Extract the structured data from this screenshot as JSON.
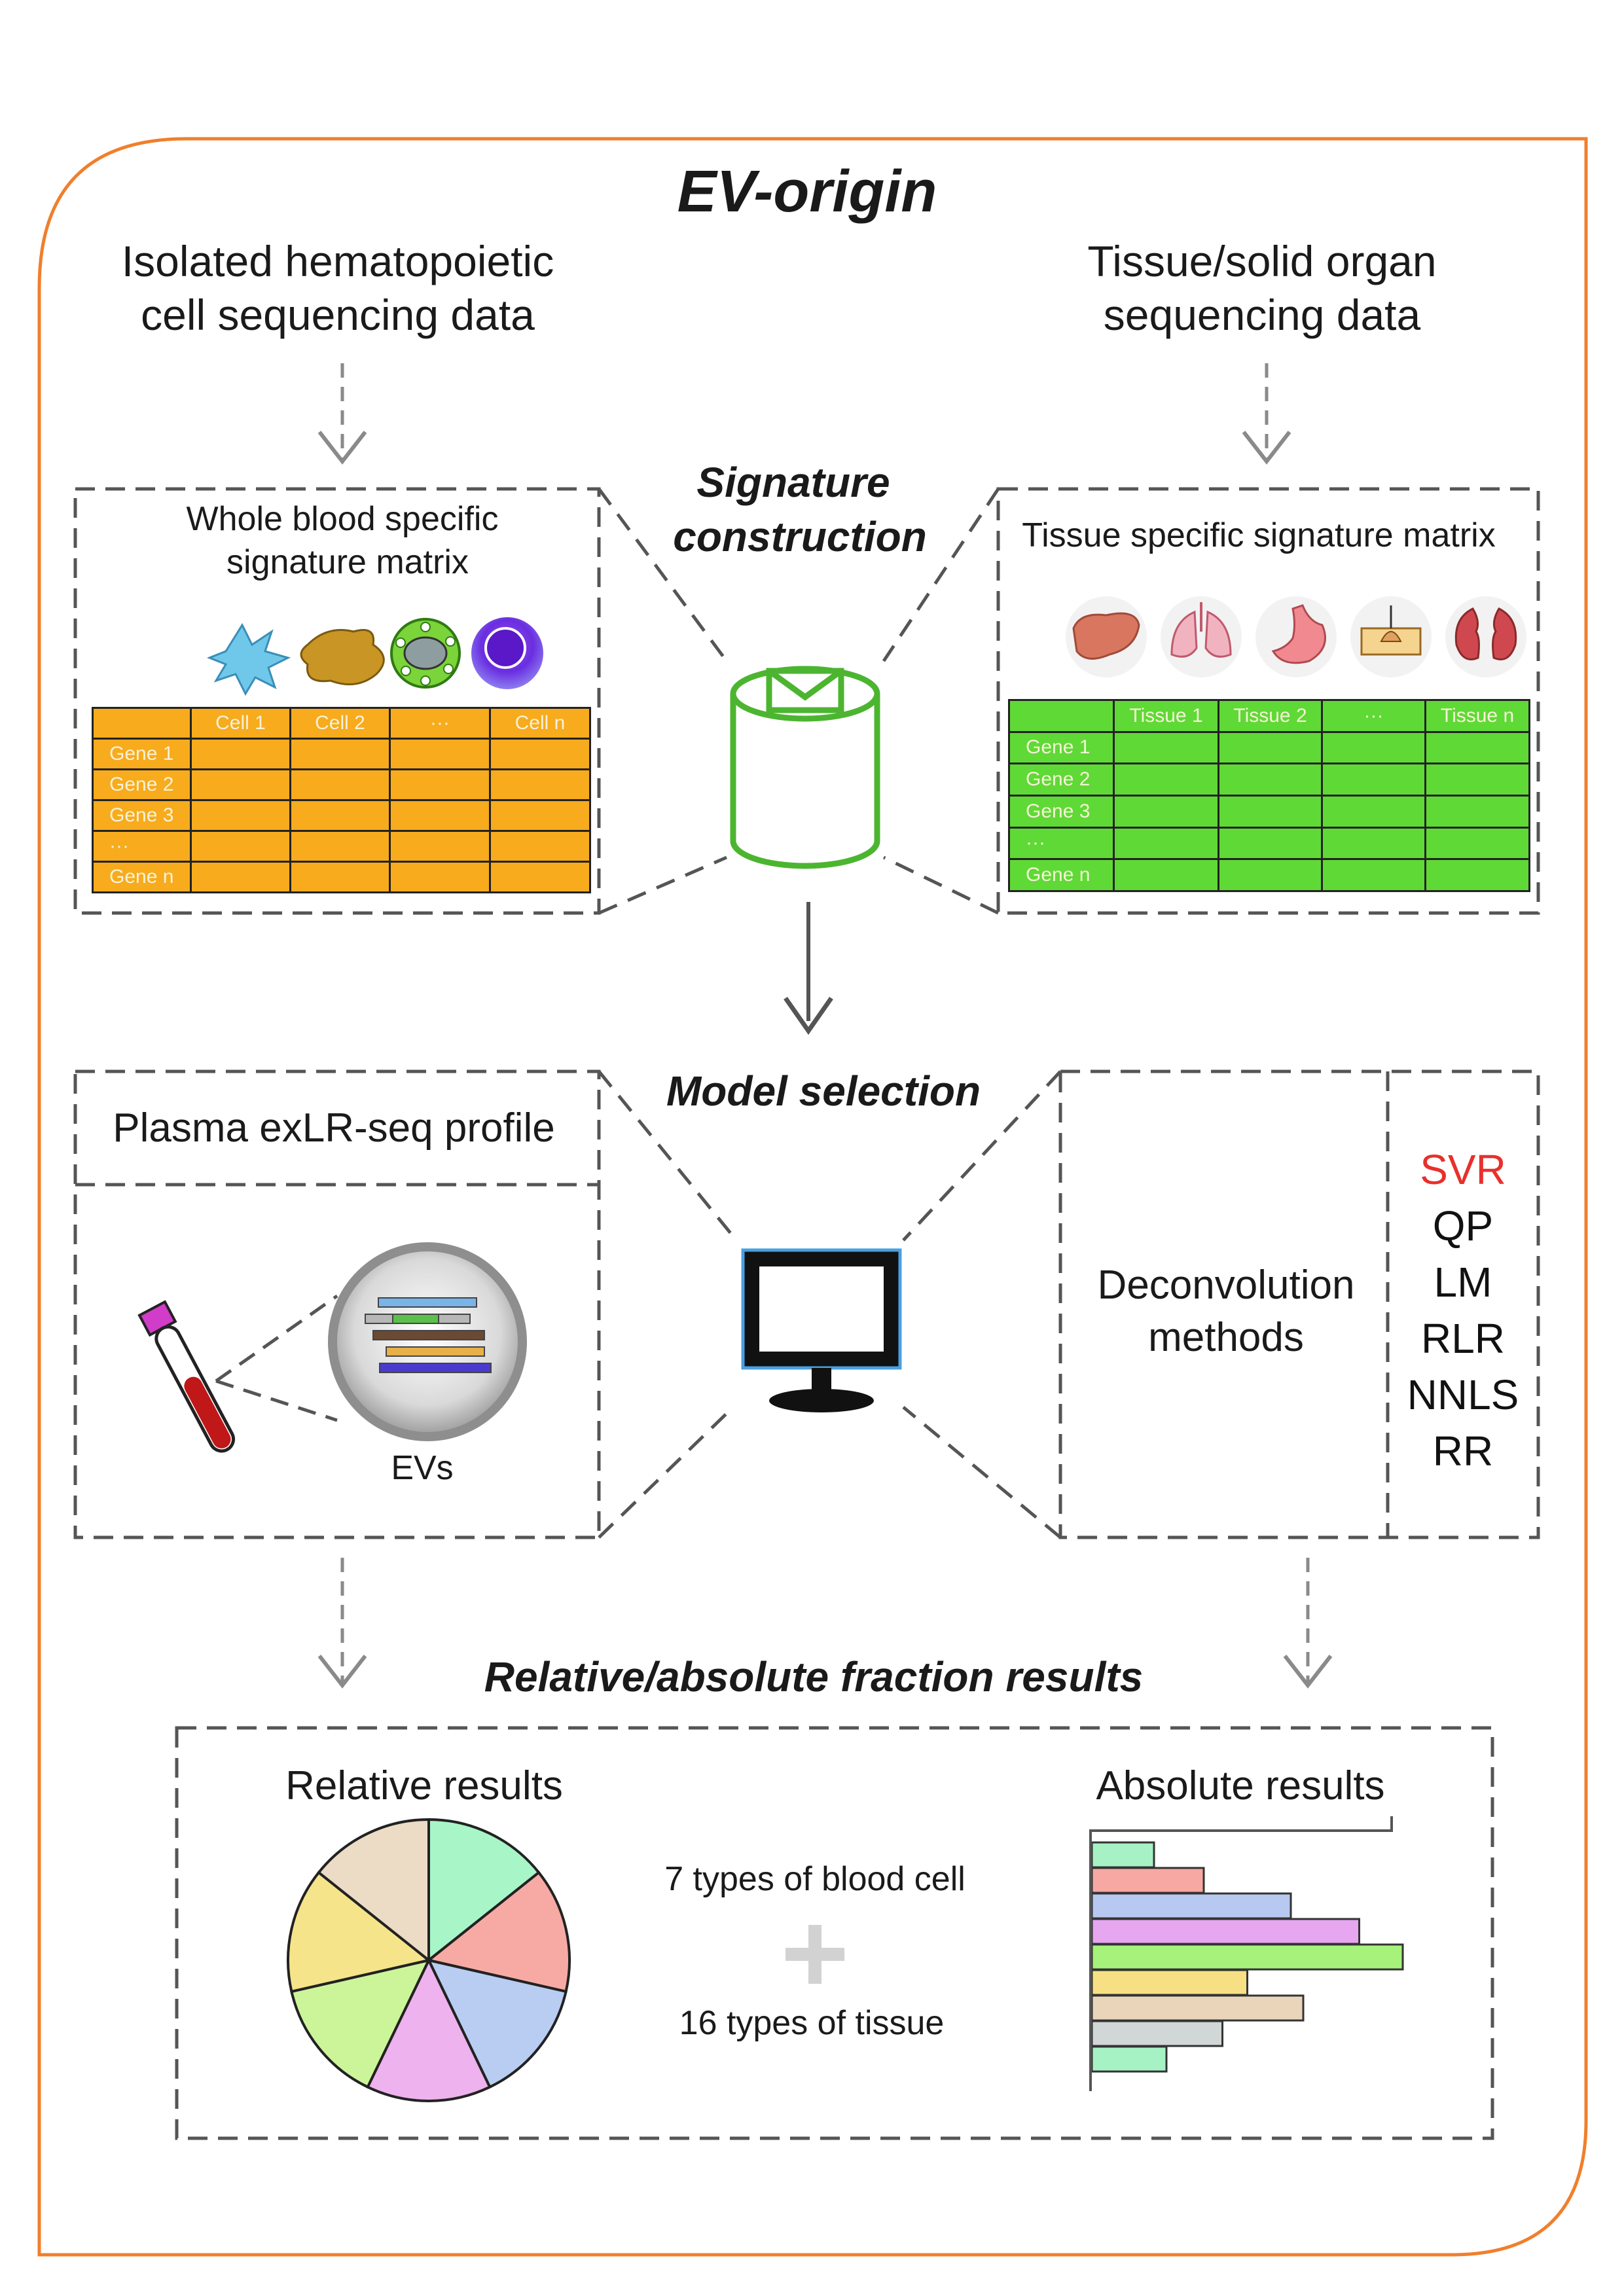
{
  "title": "EV-origin",
  "top_left_source": [
    "Isolated hematopoietic",
    "cell sequencing data"
  ],
  "top_right_source": [
    "Tissue/solid organ",
    "sequencing data"
  ],
  "signature_construction": [
    "Signature",
    "construction"
  ],
  "blood_matrix": {
    "title": [
      "Whole blood specific",
      "signature matrix"
    ],
    "columns": [
      "",
      "Cell 1",
      "Cell 2",
      "···",
      "Cell n"
    ],
    "rows": [
      "Gene 1",
      "Gene 2",
      "Gene 3",
      "···",
      "Gene n"
    ],
    "color": "#f7ab1d"
  },
  "tissue_matrix": {
    "title": "Tissue specific signature matrix",
    "columns": [
      "",
      "Tissue 1",
      "Tissue 2",
      "···",
      "Tissue n"
    ],
    "rows": [
      "Gene 1",
      "Gene 2",
      "Gene 3",
      "···",
      "Gene n"
    ],
    "color": "#5fd936"
  },
  "model_selection": "Model selection",
  "plasma_profile": "Plasma exLR-seq profile",
  "evs_label": "EVs",
  "deconvolution": [
    "Deconvolution",
    "methods"
  ],
  "methods": [
    {
      "name": "SVR",
      "color": "#e8302c"
    },
    {
      "name": "QP",
      "color": "#111111"
    },
    {
      "name": "LM",
      "color": "#111111"
    },
    {
      "name": "RLR",
      "color": "#111111"
    },
    {
      "name": "NNLS",
      "color": "#111111"
    },
    {
      "name": "RR",
      "color": "#111111"
    }
  ],
  "results_heading": "Relative/absolute fraction results",
  "relative_results": "Relative results",
  "absolute_results": "Absolute results",
  "blood_cell_types": "7 types of blood cell",
  "tissue_types": "16 types of tissue",
  "pie_colors": [
    "#a8f5c8",
    "#f7aaa4",
    "#b9cdf2",
    "#eeb2ee",
    "#ccf59a",
    "#f5e48a",
    "#ecdcc6"
  ],
  "bar_values": [
    0.2,
    0.36,
    0.64,
    0.86,
    1.0,
    0.5,
    0.68,
    0.42,
    0.24
  ],
  "bar_colors": [
    "#a6f2c4",
    "#f7a8a2",
    "#b7c9f0",
    "#e6a6f0",
    "#a6f27a",
    "#f7e083",
    "#ead5bb",
    "#d0d7d6",
    "#a6f2c4"
  ],
  "colors": {
    "frame": "#f07f2c",
    "dash": "#555555",
    "arrow": "#8a8a8a",
    "can": "#4cb530"
  },
  "icons": [
    "blood-cell-icons",
    "organ-icons",
    "database-icon",
    "monitor-icon",
    "blood-tube-icon",
    "ev-sphere-icon"
  ]
}
